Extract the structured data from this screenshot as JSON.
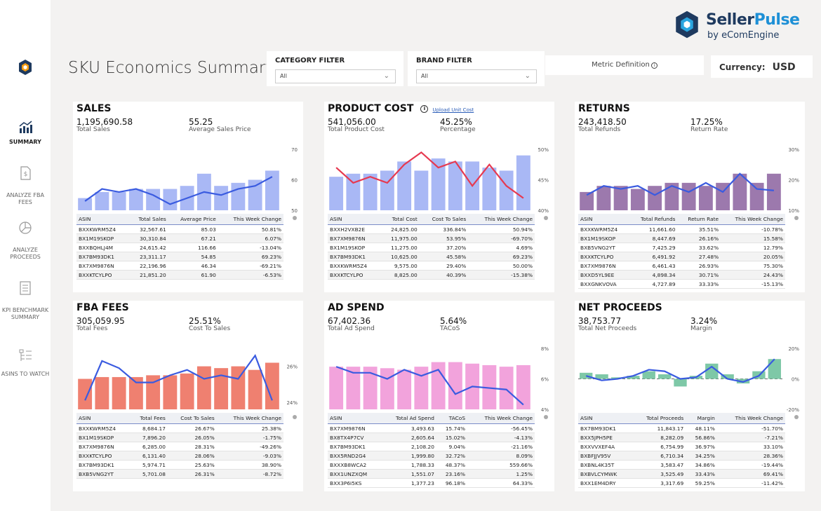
{
  "page": {
    "title": "SKU Economics Summary"
  },
  "brand": {
    "name_a": "Seller",
    "name_b": "Pulse",
    "sub": "by eComEngine"
  },
  "filters": {
    "category": {
      "label": "CATEGORY FILTER",
      "value": "All"
    },
    "brand": {
      "label": "BRAND FILTER",
      "value": "All"
    }
  },
  "metric_definition": "Metric Definition",
  "currency": {
    "label": "Currency:",
    "value": "USD"
  },
  "nav": [
    {
      "label": "SUMMARY",
      "icon": "bar-chart-icon"
    },
    {
      "label": "ANALYZE FBA FEES",
      "icon": "dollar-document-icon"
    },
    {
      "label": "ANALYZE PROCEEDS",
      "icon": "pie-chart-icon"
    },
    {
      "label": "KPI BENCHMARK SUMMARY",
      "icon": "list-document-icon"
    },
    {
      "label": "ASINS TO WATCH",
      "icon": "tree-list-icon"
    }
  ],
  "panels": [
    {
      "id": "sales",
      "title": "SALES",
      "kpi1": {
        "value": "1,195,690.58",
        "label": "Total Sales"
      },
      "kpi2": {
        "value": "55.25",
        "label": "Average Sales Price"
      },
      "axis_ticks": [
        "70",
        "60",
        "50"
      ],
      "bar_color": "#a9b8f5",
      "line_color": "#3a5be0",
      "chart_data": {
        "type": "bar",
        "bars": [
          54,
          56,
          56,
          57,
          57,
          57,
          58,
          62,
          58,
          59,
          60,
          63
        ],
        "line": [
          53,
          57,
          56,
          57,
          55,
          52,
          54,
          56,
          55,
          57,
          58,
          61
        ],
        "ylim": [
          50,
          70
        ],
        "y_ticks": [
          70,
          60,
          50
        ]
      },
      "columns": [
        "ASIN",
        "Total Sales",
        "Average Price",
        "This Week Change"
      ],
      "rows": [
        [
          "BXXKWRM5Z4",
          "32,567.61",
          "85.03",
          "50.81%"
        ],
        [
          "BX1M19SKOP",
          "30,310.84",
          "67.21",
          "6.07%"
        ],
        [
          "BXXBQHLJ4M",
          "24,615.42",
          "116.66",
          "-13.04%"
        ],
        [
          "BX7BM93DK1",
          "23,311.17",
          "54.85",
          "69.23%"
        ],
        [
          "BX7XM9876N",
          "22,196.96",
          "46.34",
          "-69.21%"
        ],
        [
          "BXXKTCYLPO",
          "21,851.20",
          "61.90",
          "-6.53%"
        ]
      ]
    },
    {
      "id": "product-cost",
      "title": "PRODUCT COST",
      "link": "Upload Unit Cost",
      "kpi1": {
        "value": "541,056.00",
        "label": "Total Product Cost"
      },
      "kpi2": {
        "value": "45.25%",
        "label": "Percentage"
      },
      "axis_ticks": [
        "50%",
        "45%",
        "40%"
      ],
      "bar_color": "#a9b8f5",
      "line_color": "#e63950",
      "chart_data": {
        "type": "bar",
        "bars": [
          45.5,
          46,
          46,
          46.5,
          48,
          46.5,
          48.5,
          48,
          48,
          47,
          46.5,
          49
        ],
        "line": [
          47,
          44.5,
          45.5,
          44.5,
          47.5,
          49.5,
          47,
          48,
          44,
          47.5,
          44,
          42
        ],
        "ylim": [
          40,
          50
        ],
        "y_ticks": [
          "50%",
          "45%",
          "40%"
        ]
      },
      "columns": [
        "ASIN",
        "Total Cost",
        "Cost To Sales",
        "This Week Change"
      ],
      "rows": [
        [
          "BXXH2VXB2E",
          "24,825.00",
          "336.84%",
          "50.94%"
        ],
        [
          "BX7XM9876N",
          "11,975.00",
          "53.95%",
          "-69.70%"
        ],
        [
          "BX1M19SKOP",
          "11,275.00",
          "37.20%",
          "4.69%"
        ],
        [
          "BX7BM93DK1",
          "10,625.00",
          "45.58%",
          "69.23%"
        ],
        [
          "BXXKWRM5Z4",
          "9,575.00",
          "29.40%",
          "50.00%"
        ],
        [
          "BXXKTCYLPO",
          "8,825.00",
          "40.39%",
          "-15.38%"
        ]
      ]
    },
    {
      "id": "returns",
      "title": "RETURNS",
      "kpi1": {
        "value": "243,418.50",
        "label": "Total Refunds"
      },
      "kpi2": {
        "value": "17.25%",
        "label": "Return Rate"
      },
      "axis_ticks": [
        "30%",
        "20%",
        "10%"
      ],
      "bar_color": "#9c79ad",
      "line_color": "#3a5be0",
      "chart_data": {
        "type": "bar",
        "bars": [
          16,
          18,
          18,
          17,
          18,
          19,
          19,
          18,
          19,
          22,
          19,
          22
        ],
        "line": [
          15,
          18,
          17,
          18,
          15,
          18,
          16,
          19,
          16,
          22,
          17,
          16.5
        ],
        "ylim": [
          10,
          30
        ],
        "y_ticks": [
          "30%",
          "20%",
          "10%"
        ]
      },
      "columns": [
        "ASIN",
        "Total Refunds",
        "Return Rate",
        "This Week Change"
      ],
      "rows": [
        [
          "BXXKWRM5Z4",
          "11,661.60",
          "35.51%",
          "-10.78%"
        ],
        [
          "BX1M19SKOP",
          "8,447.69",
          "26.16%",
          "15.58%"
        ],
        [
          "BXB5VNG2YT",
          "7,425.29",
          "33.62%",
          "12.79%"
        ],
        [
          "BXXKTCYLPO",
          "6,491.92",
          "27.48%",
          "20.05%"
        ],
        [
          "BX7XM9876N",
          "6,461.43",
          "26.93%",
          "75.30%"
        ],
        [
          "BXXD5YL9EE",
          "4,898.34",
          "30.71%",
          "24.43%"
        ],
        [
          "BXXGNKVOVA",
          "4,727.89",
          "33.33%",
          "-15.13%"
        ]
      ]
    },
    {
      "id": "fba-fees",
      "title": "FBA FEES",
      "kpi1": {
        "value": "305,059.95",
        "label": "Total Fees"
      },
      "kpi2": {
        "value": "25.51%",
        "label": "Cost To Sales"
      },
      "axis_ticks": [
        "26%",
        "24%"
      ],
      "bar_color": "#ef8070",
      "line_color": "#3a5be0",
      "chart_data": {
        "type": "bar",
        "bars": [
          25.3,
          25.4,
          25.4,
          25.4,
          25.5,
          25.5,
          25.6,
          26.0,
          25.9,
          26.0,
          25.8,
          26.2
        ],
        "line": [
          24.1,
          26.3,
          25.9,
          25.1,
          25.1,
          25.5,
          25.8,
          25.3,
          25.5,
          25.3,
          26.6,
          24.1
        ],
        "ylim": [
          23.6,
          27.0
        ],
        "y_ticks": [
          "26%",
          "24%"
        ]
      },
      "columns": [
        "ASIN",
        "Total Fees",
        "Cost To Sales",
        "This Week Change"
      ],
      "rows": [
        [
          "BXXKWRM5Z4",
          "8,684.17",
          "26.67%",
          "25.38%"
        ],
        [
          "BX1M19SKOP",
          "7,896.20",
          "26.05%",
          "-1.75%"
        ],
        [
          "BX7XM9876N",
          "6,285.00",
          "28.31%",
          "-49.26%"
        ],
        [
          "BXXKTCYLPO",
          "6,131.40",
          "28.06%",
          "-9.03%"
        ],
        [
          "BX7BM93DK1",
          "5,974.71",
          "25.63%",
          "38.90%"
        ],
        [
          "BXB5VNG2YT",
          "5,701.08",
          "26.31%",
          "-8.72%"
        ]
      ]
    },
    {
      "id": "ad-spend",
      "title": "AD SPEND",
      "kpi1": {
        "value": "67,402.36",
        "label": "Total Ad Spend"
      },
      "kpi2": {
        "value": "5.64%",
        "label": "TACoS"
      },
      "axis_ticks": [
        "8%",
        "6%",
        "4%"
      ],
      "bar_color": "#f2a3dc",
      "line_color": "#3a5be0",
      "chart_data": {
        "type": "bar",
        "bars": [
          6.8,
          6.8,
          6.8,
          6.7,
          6.6,
          6.8,
          7.1,
          7.1,
          7.0,
          6.9,
          6.8,
          6.9
        ],
        "line": [
          6.8,
          6.4,
          6.4,
          6.0,
          6.6,
          6.2,
          6.6,
          5.0,
          5.5,
          5.4,
          5.3,
          4.3
        ],
        "ylim": [
          4,
          8
        ],
        "y_ticks": [
          "8%",
          "6%",
          "4%"
        ]
      },
      "columns": [
        "ASIN",
        "Total Ad Spend",
        "TACoS",
        "This Week Change"
      ],
      "rows": [
        [
          "BX7XM9876N",
          "3,493.63",
          "15.74%",
          "-56.45%"
        ],
        [
          "BX8TX4P7CV",
          "2,605.64",
          "15.02%",
          "-4.13%"
        ],
        [
          "BX7BM93DK1",
          "2,108.20",
          "9.04%",
          "-21.16%"
        ],
        [
          "BXX5RND2G4",
          "1,999.80",
          "32.72%",
          "8.09%"
        ],
        [
          "BXXXB8WCA2",
          "1,788.33",
          "48.37%",
          "559.66%"
        ],
        [
          "BXX1UNZXQM",
          "1,551.07",
          "23.16%",
          "1.25%"
        ],
        [
          "BXX3P6I5KS",
          "1,377.23",
          "96.18%",
          "64.33%"
        ]
      ]
    },
    {
      "id": "net-proceeds",
      "title": "NET PROCEEDS",
      "kpi1": {
        "value": "38,753.77",
        "label": "Total Net Proceeds"
      },
      "kpi2": {
        "value": "3.24%",
        "label": "Margin"
      },
      "axis_ticks": [
        "20%",
        "0%",
        "-20%"
      ],
      "bar_color": "#7ec8a7",
      "line_color": "#3a5be0",
      "chart_data": {
        "type": "bar",
        "bars": [
          4,
          3,
          1,
          2,
          5,
          3,
          -5,
          2,
          10,
          3,
          -3,
          5,
          13
        ],
        "line": [
          2,
          -1,
          0,
          2,
          6,
          5,
          0,
          1,
          8,
          0,
          -2,
          2,
          13
        ],
        "ylim": [
          -20,
          20
        ],
        "y_ticks": [
          "20%",
          "0%",
          "-20%"
        ]
      },
      "columns": [
        "ASIN",
        "Total Proceeds",
        "Margin",
        "This Week Change"
      ],
      "rows": [
        [
          "BX7BM93DK1",
          "11,843.17",
          "48.11%",
          "-51.70%"
        ],
        [
          "BXX5JPH5PE",
          "8,282.09",
          "56.86%",
          "-7.21%"
        ],
        [
          "BXXVVXEF4A",
          "6,754.99",
          "36.97%",
          "33.10%"
        ],
        [
          "BXBFJJV95V",
          "6,710.34",
          "34.25%",
          "28.36%"
        ],
        [
          "BXBNL4K35T",
          "3,583.47",
          "34.86%",
          "-19.44%"
        ],
        [
          "BXBVLCYMWK",
          "3,525.49",
          "33.43%",
          "69.41%"
        ],
        [
          "BXX1EM4DRY",
          "3,317.69",
          "59.25%",
          "-11.42%"
        ]
      ]
    }
  ]
}
